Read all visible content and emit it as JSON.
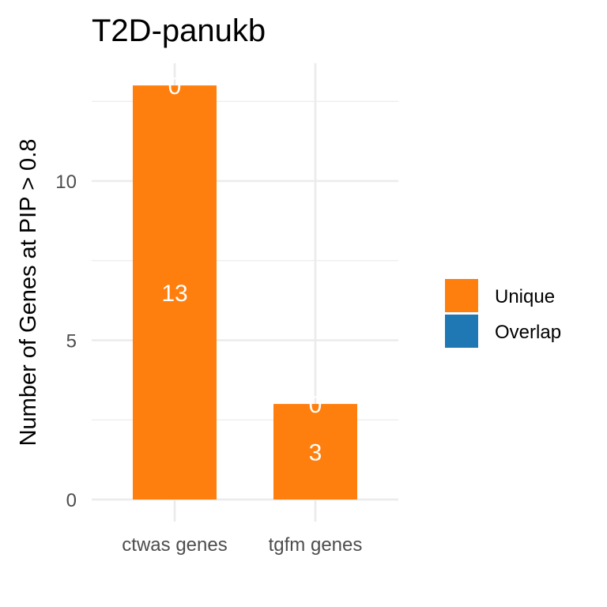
{
  "chart_data": {
    "type": "bar",
    "stacked": true,
    "title": "T2D-panukb",
    "xlabel": "",
    "ylabel": "Number of Genes at PIP > 0.8",
    "categories": [
      "ctwas genes",
      "tgfm genes"
    ],
    "series": [
      {
        "name": "Unique",
        "color": "#FF7F0E",
        "values": [
          13,
          3
        ]
      },
      {
        "name": "Overlap",
        "color": "#1F77B4",
        "values": [
          0,
          0
        ]
      }
    ],
    "ylim": [
      0,
      13
    ],
    "yticks": [
      0,
      5,
      10
    ],
    "grid": true,
    "legend_position": "right"
  }
}
